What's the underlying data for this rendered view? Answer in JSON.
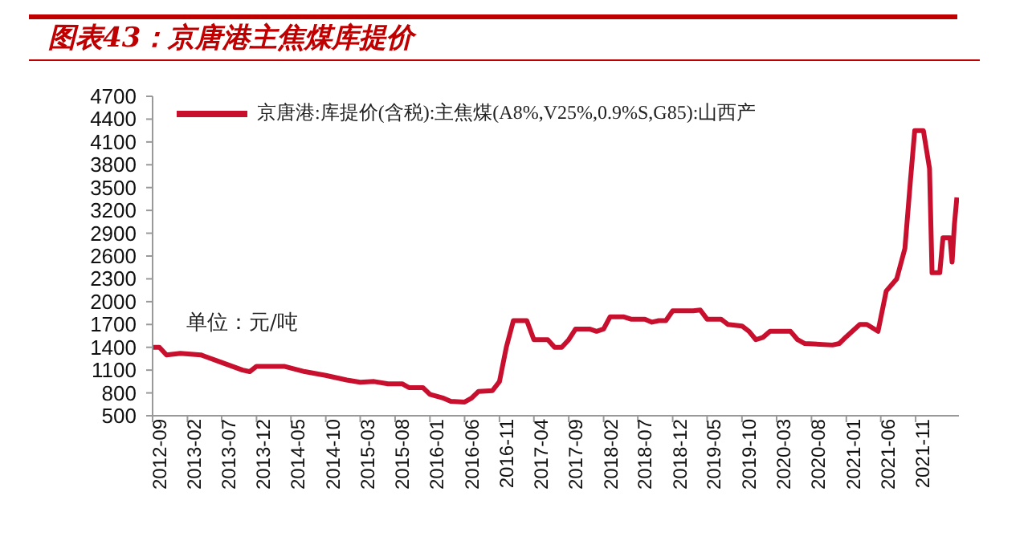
{
  "chart_data": {
    "type": "line",
    "title": "图表43：京唐港主焦煤库提价",
    "annotations": [
      "单位：元/吨"
    ],
    "legend": "top left",
    "grid": false,
    "marker": "none",
    "line_style": "solid",
    "xlim": [
      "2012-09",
      "2022-05-10"
    ],
    "xticks": [
      "2012-09",
      "2013-02",
      "2013-07",
      "2013-12",
      "2014-05",
      "2014-10",
      "2015-03",
      "2015-08",
      "2016-01",
      "2016-06",
      "2016-11",
      "2017-04",
      "2017-09",
      "2018-02",
      "2018-07",
      "2018-12",
      "2019-05",
      "2019-10",
      "2020-03",
      "2020-08",
      "2021-01",
      "2021-06",
      "2021-11"
    ],
    "ylim": [
      500,
      4700
    ],
    "yticks": [
      500,
      800,
      1100,
      1400,
      1700,
      2000,
      2300,
      2600,
      2900,
      3200,
      3500,
      3800,
      4100,
      4400,
      4700
    ],
    "series": [
      {
        "name": "京唐港:库提价(含税):主焦煤(A8%,V25%,0.9%S,G85):山西产",
        "color": "#c8102e",
        "x": [
          "2012-09",
          "2012-10",
          "2012-11",
          "2013-01",
          "2013-04",
          "2013-07",
          "2013-10",
          "2013-11",
          "2013-12",
          "2014-04",
          "2014-07",
          "2014-10",
          "2015-01",
          "2015-03",
          "2015-05",
          "2015-07",
          "2015-09",
          "2015-10",
          "2015-12",
          "2016-01",
          "2016-03",
          "2016-04",
          "2016-06",
          "2016-07",
          "2016-08",
          "2016-10",
          "2016-11",
          "2016-12",
          "2017-01",
          "2017-03",
          "2017-04",
          "2017-06",
          "2017-07",
          "2017-08",
          "2017-09",
          "2017-10",
          "2017-12",
          "2018-01",
          "2018-02",
          "2018-03",
          "2018-05",
          "2018-06",
          "2018-08",
          "2018-09",
          "2018-10",
          "2018-11",
          "2018-12",
          "2019-03",
          "2019-04",
          "2019-05",
          "2019-07",
          "2019-08",
          "2019-10",
          "2019-11",
          "2019-12",
          "2020-01",
          "2020-02",
          "2020-05",
          "2020-06",
          "2020-07",
          "2020-11",
          "2020-12",
          "2021-01",
          "2021-03",
          "2021-04",
          "2021-05-20",
          "2021-06-25",
          "2021-08-10",
          "2021-09-15",
          "2021-10-10",
          "2021-10-28",
          "2021-12-05",
          "2022-01-01",
          "2022-01-12",
          "2022-02-15",
          "2022-03-01",
          "2022-04-01",
          "2022-04-10",
          "2022-04-20",
          "2022-05-01"
        ],
        "values": [
          1400,
          1400,
          1300,
          1320,
          1300,
          1200,
          1100,
          1080,
          1150,
          1150,
          1080,
          1030,
          970,
          940,
          950,
          920,
          920,
          870,
          870,
          780,
          730,
          690,
          680,
          730,
          820,
          830,
          950,
          1400,
          1750,
          1750,
          1500,
          1500,
          1400,
          1400,
          1500,
          1640,
          1640,
          1610,
          1640,
          1800,
          1800,
          1770,
          1770,
          1730,
          1750,
          1750,
          1880,
          1880,
          1890,
          1770,
          1770,
          1700,
          1680,
          1610,
          1500,
          1530,
          1610,
          1610,
          1500,
          1450,
          1430,
          1450,
          1540,
          1700,
          1700,
          1610,
          2140,
          2300,
          2700,
          3620,
          4250,
          4250,
          3750,
          2380,
          2380,
          2840,
          2840,
          2520,
          3010,
          3370
        ]
      }
    ]
  }
}
